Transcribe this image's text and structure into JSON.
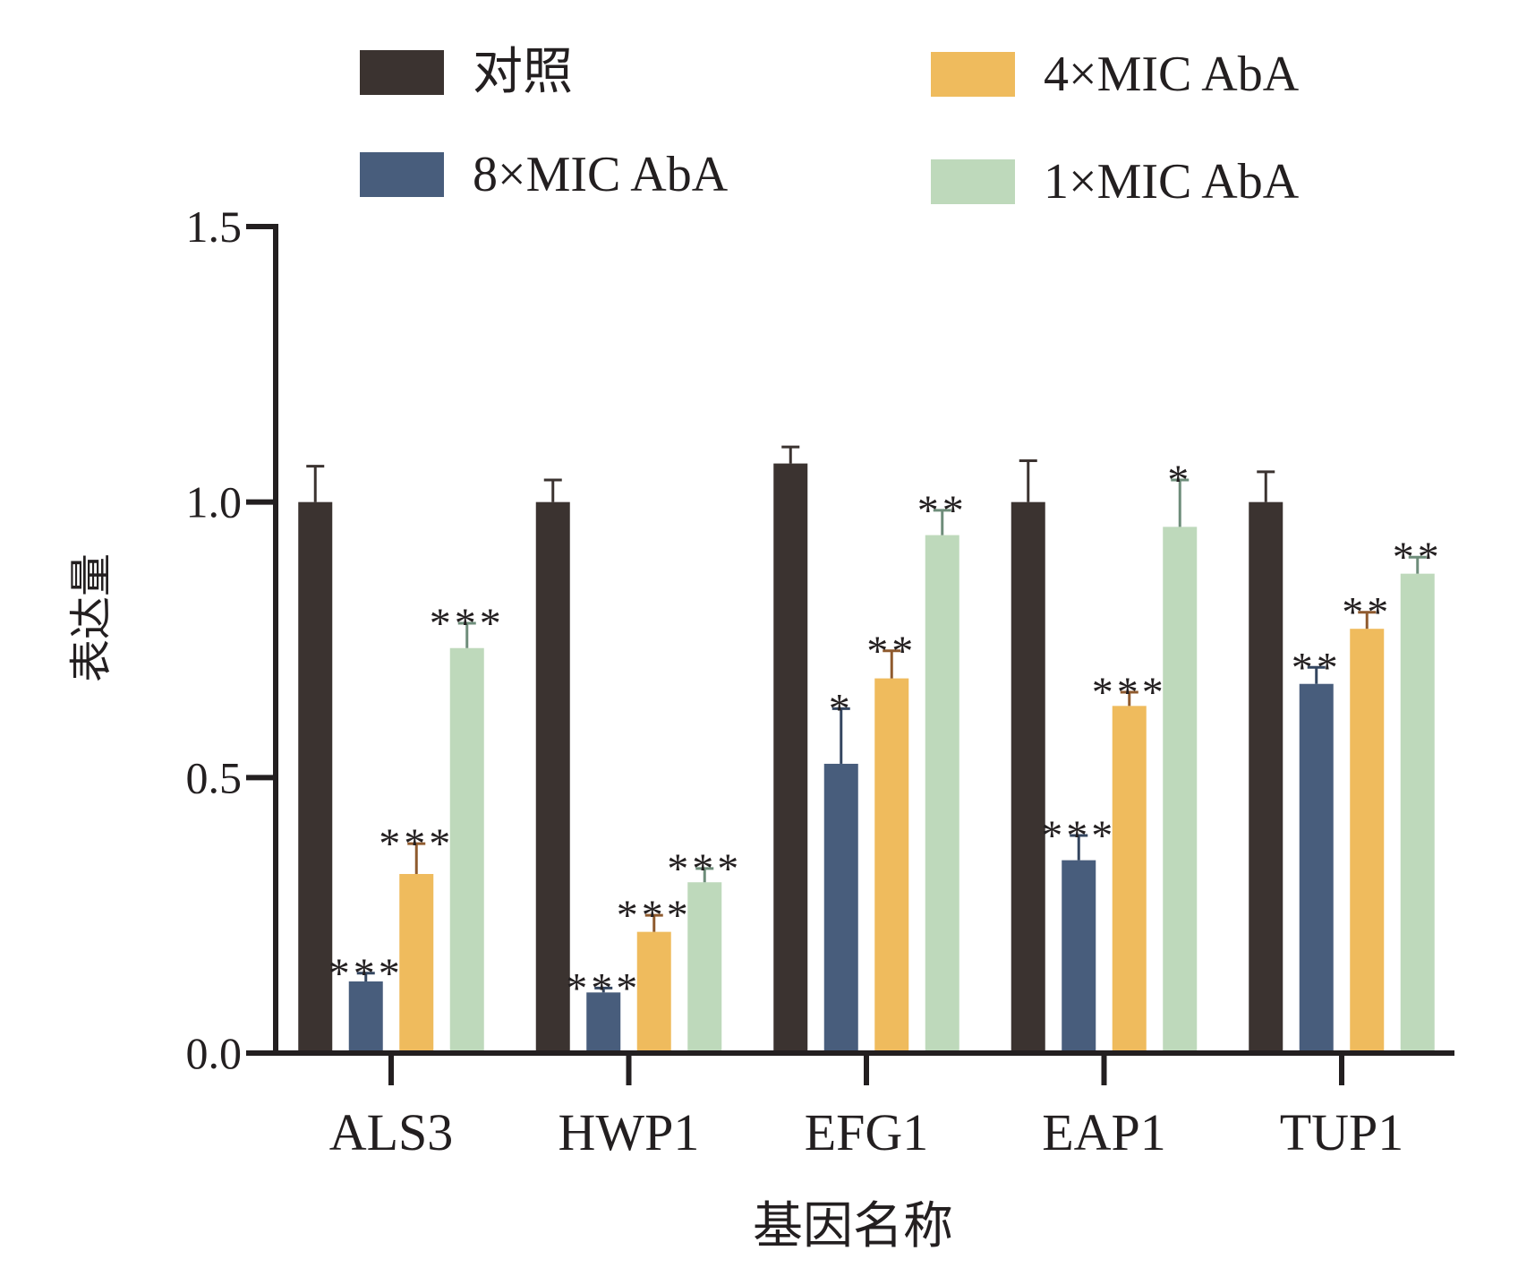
{
  "chart_data": {
    "type": "bar",
    "title": "",
    "xlabel": "基因名称",
    "ylabel": "表达量",
    "ylim": [
      0,
      1.5
    ],
    "yticks": [
      "0.0",
      "0.5",
      "1.0",
      "1.5"
    ],
    "ytick_values": [
      0,
      0.5,
      1.0,
      1.5
    ],
    "categories": [
      "ALS3",
      "HWP1",
      "EFG1",
      "EAP1",
      "TUP1"
    ],
    "grid": false,
    "legend_position": "top",
    "series": [
      {
        "name": "对照",
        "color": "#3b3330",
        "errorColor": "#3b3330",
        "values": [
          1.0,
          1.0,
          1.07,
          1.0,
          1.0
        ],
        "errors": [
          0.065,
          0.04,
          0.03,
          0.075,
          0.055
        ],
        "significance": [
          "",
          "",
          "",
          "",
          ""
        ]
      },
      {
        "name": "8×MIC AbA",
        "color": "#485d7c",
        "errorColor": "#344660",
        "values": [
          0.13,
          0.11,
          0.525,
          0.35,
          0.67
        ],
        "errors": [
          0.015,
          0.008,
          0.1,
          0.045,
          0.03
        ],
        "significance": [
          "***",
          "***",
          "*",
          "***",
          "**"
        ]
      },
      {
        "name": "4×MIC AbA",
        "color": "#efbb5d",
        "errorColor": "#8f5a2e",
        "values": [
          0.325,
          0.22,
          0.68,
          0.63,
          0.77
        ],
        "errors": [
          0.055,
          0.03,
          0.05,
          0.025,
          0.03
        ],
        "significance": [
          "***",
          "***",
          "**",
          "***",
          "**"
        ]
      },
      {
        "name": "1×MIC AbA",
        "color": "#bed9bb",
        "errorColor": "#6e8d7a",
        "values": [
          0.735,
          0.31,
          0.94,
          0.955,
          0.87
        ],
        "errors": [
          0.045,
          0.025,
          0.045,
          0.085,
          0.03
        ],
        "significance": [
          "***",
          "***",
          "**",
          "*",
          "**"
        ]
      }
    ]
  }
}
